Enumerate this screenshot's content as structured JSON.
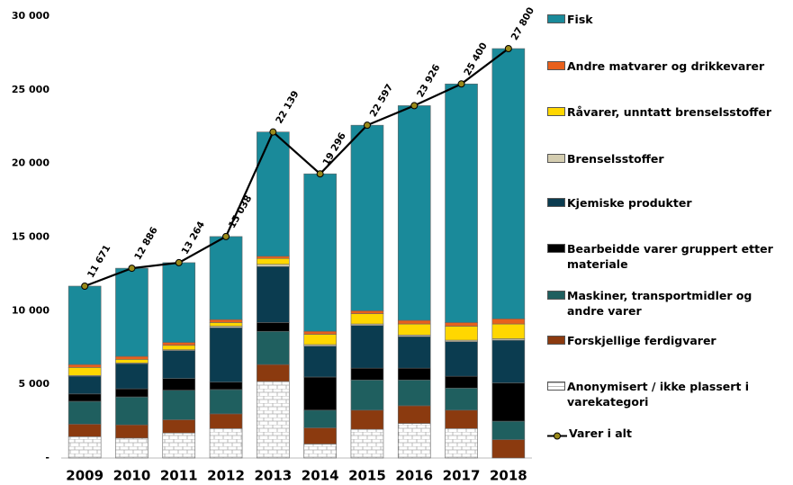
{
  "chart_data": {
    "type": "stacked-bar-line",
    "categories": [
      "2009",
      "2010",
      "2011",
      "2012",
      "2013",
      "2014",
      "2015",
      "2016",
      "2017",
      "2018"
    ],
    "ylim": [
      0,
      30000
    ],
    "yticks": [
      {
        "value": 0,
        "label": "-"
      },
      {
        "value": 5000,
        "label": "5 000"
      },
      {
        "value": 10000,
        "label": "10 000"
      },
      {
        "value": 15000,
        "label": "15 000"
      },
      {
        "value": 20000,
        "label": "20 000"
      },
      {
        "value": 25000,
        "label": "25 000"
      },
      {
        "value": 30000,
        "label": "30 000"
      }
    ],
    "series": [
      {
        "name": "Anonymisert / ikke plassert i varekategori",
        "color": "#ffffff",
        "hatch": "brick",
        "values": [
          1450,
          1350,
          1700,
          2000,
          5200,
          950,
          1950,
          2350,
          2000,
          0
        ]
      },
      {
        "name": "Forskjellige ferdigvarer",
        "color": "#8b3a0f",
        "values": [
          850,
          900,
          900,
          1000,
          1150,
          1100,
          1300,
          1200,
          1250,
          1250
        ]
      },
      {
        "name": "Maskiner, transportmidler og andre varer",
        "color": "#1f5f5f",
        "values": [
          1550,
          1900,
          2000,
          1650,
          2250,
          1200,
          2050,
          1750,
          1500,
          1250
        ]
      },
      {
        "name": "Bearbeidde varer gruppert etter materiale",
        "color": "#000000",
        "values": [
          500,
          550,
          800,
          500,
          600,
          2250,
          800,
          800,
          800,
          2600
        ]
      },
      {
        "name": "Kjemiske produkter",
        "color": "#0b3c50",
        "values": [
          1200,
          1700,
          1900,
          3700,
          3800,
          2100,
          2900,
          2150,
          2350,
          2900
        ]
      },
      {
        "name": "Brenselsstoffer",
        "color": "#d4cdb0",
        "values": [
          50,
          50,
          50,
          100,
          150,
          100,
          100,
          100,
          100,
          100
        ]
      },
      {
        "name": "Råvarer, unntatt brenselsstoffer",
        "color": "#ffd700",
        "values": [
          550,
          250,
          300,
          250,
          400,
          700,
          700,
          750,
          950,
          1000
        ]
      },
      {
        "name": "Andre matvarer og drikkevarer",
        "color": "#e8601c",
        "values": [
          200,
          200,
          200,
          200,
          150,
          200,
          200,
          250,
          250,
          350
        ]
      },
      {
        "name": "Fisk",
        "color": "#1a8a9a",
        "values": [
          5321,
          5986,
          5414,
          5638,
          8439,
          10696,
          12597,
          14576,
          16200,
          18350
        ]
      },
      {
        "name": "Varer i alt",
        "color": "#000000",
        "marker_color": "#9a8a1a",
        "type": "line",
        "values": [
          11671,
          12886,
          13264,
          15038,
          22139,
          19296,
          22597,
          23926,
          25400,
          27800
        ],
        "value_labels": [
          "11 671",
          "12 886",
          "13 264",
          "15 038",
          "22 139",
          "19 296",
          "22 597",
          "23 926",
          "25 400",
          "27 800"
        ]
      }
    ]
  }
}
